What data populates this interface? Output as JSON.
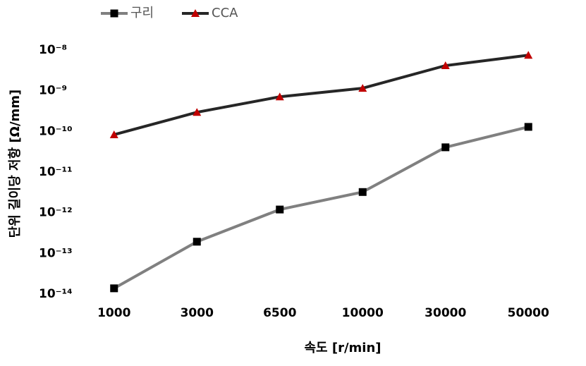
{
  "chart_data": {
    "type": "line",
    "x_label": "속도 [r/min]",
    "y_label": "단위 길이당 저항 [Ω/mm]",
    "categories": [
      "1000",
      "3000",
      "6500",
      "10000",
      "30000",
      "50000"
    ],
    "series": [
      {
        "name": "구리",
        "color": "#808080",
        "marker": "square",
        "marker_color": "#000000",
        "values": [
          1.5e-14,
          2.1e-13,
          1.3e-12,
          3.5e-12,
          4.4e-11,
          1.4e-10
        ]
      },
      {
        "name": "CCA",
        "color": "#262626",
        "marker": "triangle",
        "marker_color": "#c00000",
        "values": [
          9e-11,
          3.2e-10,
          7.7e-10,
          1.25e-09,
          4.5e-09,
          8.1e-09
        ]
      }
    ],
    "log_scale": true,
    "ylim": [
      1e-14,
      1e-08
    ],
    "yticks": [
      {
        "value": 1e-14,
        "label": "10⁻¹⁴"
      },
      {
        "value": 1e-13,
        "label": "10⁻¹³"
      },
      {
        "value": 1e-12,
        "label": "10⁻¹²"
      },
      {
        "value": 1e-11,
        "label": "10⁻¹¹"
      },
      {
        "value": 1e-10,
        "label": "10⁻¹⁰"
      },
      {
        "value": 1e-09,
        "label": "10⁻⁹"
      },
      {
        "value": 1e-08,
        "label": "10⁻⁸"
      }
    ],
    "grid": false,
    "legend": "top-left"
  }
}
